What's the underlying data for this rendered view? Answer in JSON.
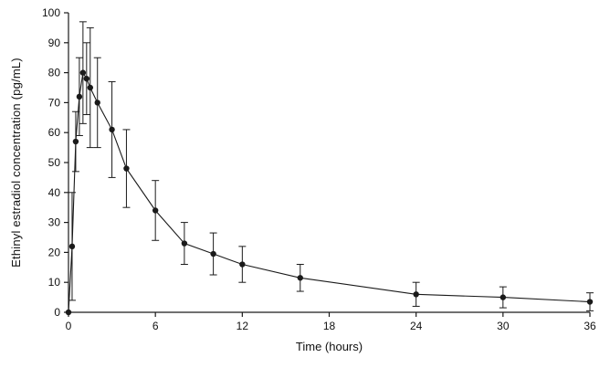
{
  "chart_data": {
    "type": "line",
    "title": "",
    "xlabel": "Time (hours)",
    "ylabel": "Ethinyl estradiol concentration (pg/mL)",
    "xlim": [
      0,
      36
    ],
    "ylim": [
      0,
      100
    ],
    "x_ticks": [
      0,
      6,
      12,
      18,
      24,
      30,
      36
    ],
    "y_ticks": [
      0,
      10,
      20,
      30,
      40,
      50,
      60,
      70,
      80,
      90,
      100
    ],
    "grid": false,
    "legend": "none",
    "line_color": "#1a1a1a",
    "marker": "circle",
    "series": [
      {
        "name": "Ethinyl estradiol",
        "x": [
          0,
          0.25,
          0.5,
          0.75,
          1,
          1.25,
          1.5,
          2,
          3,
          4,
          6,
          8,
          10,
          12,
          16,
          24,
          30,
          36
        ],
        "y": [
          0,
          22,
          57,
          72,
          80,
          78,
          75,
          70,
          61,
          48,
          34,
          23,
          19.5,
          16,
          11.5,
          6,
          5,
          3.5
        ],
        "yerr": [
          0,
          18,
          10,
          13,
          17,
          12,
          20,
          15,
          16,
          13,
          10,
          7,
          7,
          6,
          4.5,
          4,
          3.5,
          3
        ]
      }
    ]
  }
}
